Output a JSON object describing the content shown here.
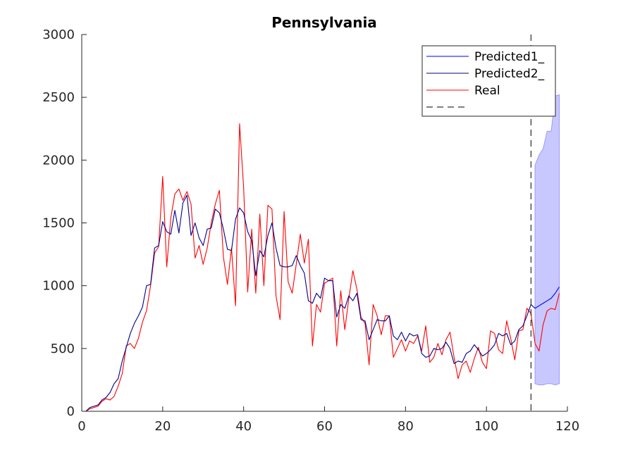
{
  "chart_data": {
    "type": "line",
    "title": "Pennsylvania",
    "xlabel": "",
    "ylabel": "",
    "xlim": [
      0,
      120
    ],
    "ylim": [
      0,
      3000
    ],
    "xticks": [
      0,
      20,
      40,
      60,
      80,
      100,
      120
    ],
    "yticks": [
      0,
      500,
      1000,
      1500,
      2000,
      2500,
      3000
    ],
    "grid": false,
    "legend_placement": "top-right",
    "vline_x": 111,
    "series": [
      {
        "name": "Predicted1_",
        "color": "#0000ff",
        "x": [
          112,
          113,
          114,
          115,
          116,
          117,
          118
        ],
        "y": [
          820,
          840,
          860,
          880,
          900,
          940,
          990
        ]
      },
      {
        "name": "Predicted2_",
        "color": "#00008b",
        "x": [
          1,
          2,
          3,
          4,
          5,
          6,
          7,
          8,
          9,
          10,
          11,
          12,
          13,
          14,
          15,
          16,
          17,
          18,
          19,
          20,
          21,
          22,
          23,
          24,
          25,
          26,
          27,
          28,
          29,
          30,
          31,
          32,
          33,
          34,
          35,
          36,
          37,
          38,
          39,
          40,
          41,
          42,
          43,
          44,
          45,
          46,
          47,
          48,
          49,
          50,
          51,
          52,
          53,
          54,
          55,
          56,
          57,
          58,
          59,
          60,
          61,
          62,
          63,
          64,
          65,
          66,
          67,
          68,
          69,
          70,
          71,
          72,
          73,
          74,
          75,
          76,
          77,
          78,
          79,
          80,
          81,
          82,
          83,
          84,
          85,
          86,
          87,
          88,
          89,
          90,
          91,
          92,
          93,
          94,
          95,
          96,
          97,
          98,
          99,
          100,
          101,
          102,
          103,
          104,
          105,
          106,
          107,
          108,
          109,
          110,
          111,
          112
        ],
        "y": [
          0,
          30,
          40,
          50,
          90,
          110,
          150,
          220,
          260,
          400,
          510,
          620,
          700,
          760,
          830,
          1000,
          1010,
          1300,
          1320,
          1510,
          1430,
          1410,
          1600,
          1420,
          1660,
          1720,
          1400,
          1500,
          1380,
          1320,
          1450,
          1460,
          1610,
          1580,
          1450,
          1290,
          1280,
          1530,
          1620,
          1580,
          1430,
          1360,
          1080,
          1280,
          1230,
          1400,
          1500,
          1300,
          1160,
          1150,
          1150,
          1160,
          1240,
          1160,
          1100,
          880,
          860,
          940,
          900,
          1060,
          1040,
          1040,
          750,
          850,
          820,
          920,
          880,
          940,
          730,
          720,
          570,
          650,
          730,
          720,
          720,
          760,
          600,
          570,
          630,
          560,
          620,
          600,
          610,
          460,
          430,
          440,
          500,
          490,
          500,
          550,
          500,
          380,
          400,
          390,
          460,
          480,
          530,
          490,
          440,
          460,
          490,
          530,
          620,
          600,
          620,
          530,
          560,
          650,
          680,
          760,
          850,
          820
        ]
      },
      {
        "name": "Real",
        "color": "#ff0000",
        "x": [
          1,
          2,
          3,
          4,
          5,
          6,
          7,
          8,
          9,
          10,
          11,
          12,
          13,
          14,
          15,
          16,
          17,
          18,
          19,
          20,
          21,
          22,
          23,
          24,
          25,
          26,
          27,
          28,
          29,
          30,
          31,
          32,
          33,
          34,
          35,
          36,
          37,
          38,
          39,
          40,
          41,
          42,
          43,
          44,
          45,
          46,
          47,
          48,
          49,
          50,
          51,
          52,
          53,
          54,
          55,
          56,
          57,
          58,
          59,
          60,
          61,
          62,
          63,
          64,
          65,
          66,
          67,
          68,
          69,
          70,
          71,
          72,
          73,
          74,
          75,
          76,
          77,
          78,
          79,
          80,
          81,
          82,
          83,
          84,
          85,
          86,
          87,
          88,
          89,
          90,
          91,
          92,
          93,
          94,
          95,
          96,
          97,
          98,
          99,
          100,
          101,
          102,
          103,
          104,
          105,
          106,
          107,
          108,
          109,
          110,
          111,
          112,
          113,
          114,
          115,
          116,
          117,
          118
        ],
        "y": [
          0,
          20,
          30,
          40,
          80,
          100,
          90,
          120,
          200,
          300,
          520,
          540,
          500,
          580,
          710,
          800,
          1000,
          1260,
          1310,
          1870,
          1150,
          1540,
          1730,
          1770,
          1680,
          1750,
          1650,
          1220,
          1320,
          1170,
          1300,
          1500,
          1650,
          1760,
          1230,
          1010,
          1300,
          840,
          2290,
          1780,
          950,
          1450,
          940,
          1570,
          1000,
          1640,
          1610,
          920,
          730,
          1590,
          1030,
          940,
          1170,
          1410,
          1180,
          1370,
          520,
          850,
          790,
          1020,
          1040,
          1060,
          520,
          960,
          650,
          900,
          1120,
          970,
          750,
          700,
          370,
          850,
          760,
          610,
          760,
          760,
          430,
          500,
          570,
          480,
          560,
          540,
          600,
          480,
          680,
          390,
          430,
          540,
          450,
          570,
          630,
          430,
          260,
          370,
          400,
          310,
          420,
          510,
          390,
          340,
          640,
          620,
          490,
          460,
          720,
          580,
          410,
          640,
          650,
          820,
          780,
          540,
          480,
          690,
          800,
          820,
          810,
          940
        ]
      },
      {
        "name": "",
        "color": "#000000",
        "style": "dashed"
      }
    ],
    "band": {
      "color": "#c8c8ff",
      "x": [
        112,
        113,
        114,
        115,
        116,
        117,
        118
      ],
      "lower": [
        220,
        210,
        210,
        220,
        220,
        210,
        220
      ],
      "upper": [
        1960,
        2040,
        2090,
        2230,
        2230,
        2510,
        2520
      ]
    }
  }
}
